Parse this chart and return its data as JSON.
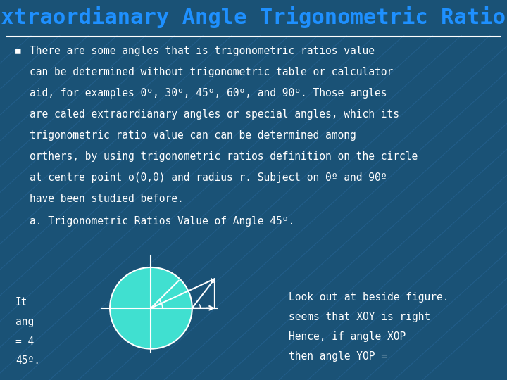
{
  "title": "Extraordianary Angle Trigonometric Ratios",
  "title_color": "#1E90FF",
  "background_color": "#1A5276",
  "text_color": "#FFFFFF",
  "sub_heading": "a. Trigonometric Ratios Value of Angle 45º.",
  "left_text_lines": [
    "It",
    "ang",
    "= 4",
    "45º."
  ],
  "right_text_lines": [
    "Look out at beside figure.",
    "seems that XOY is right",
    "Hence, if angle XOP",
    "then angle YOP ="
  ],
  "body_lines": [
    "There are some angles that is trigonometric ratios value",
    "can be determined without trigonometric table or calculator",
    "aid, for examples 0º, 30º, 45º, 60º, and 90º. Those angles",
    "are caled extraordianary angles or special angles, which its",
    "trigonometric ratio value can can be determined among",
    "orthers, by using trigonometric ratios definition on the circle",
    "at centre point o(0,0) and radius r. Subject on 0º and 90º",
    "have been studied before."
  ],
  "grid_line_color": "#2E6EA6",
  "circle_fill_color": "#40E0D0",
  "circle_edge_color": "#FFFFFF",
  "font_family": "monospace",
  "title_fontsize": 22,
  "body_fontsize": 10.5
}
